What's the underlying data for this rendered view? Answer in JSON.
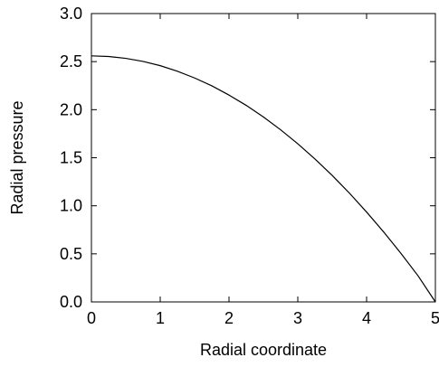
{
  "chart_data": {
    "type": "line",
    "title": "",
    "xlabel": "Radial coordinate",
    "ylabel": "Radial pressure",
    "xlim": [
      0,
      5
    ],
    "ylim": [
      0,
      3.0
    ],
    "xticks": [
      "0",
      "1",
      "2",
      "3",
      "4",
      "5"
    ],
    "yticks": [
      "0.0",
      "0.5",
      "1.0",
      "1.5",
      "2.0",
      "2.5",
      "3.0"
    ],
    "grid": false,
    "legend": "none",
    "line_color": "#000000",
    "series": [
      {
        "x": [
          0.0,
          0.25,
          0.5,
          0.75,
          1.0,
          1.25,
          1.5,
          1.75,
          2.0,
          2.25,
          2.5,
          2.75,
          3.0,
          3.25,
          3.5,
          3.75,
          4.0,
          4.25,
          4.5,
          4.75,
          5.0
        ],
        "values": [
          2.56,
          2.553,
          2.534,
          2.502,
          2.458,
          2.4,
          2.33,
          2.248,
          2.152,
          2.045,
          1.924,
          1.791,
          1.645,
          1.487,
          1.316,
          1.132,
          0.935,
          0.726,
          0.504,
          0.27,
          0.0
        ]
      }
    ]
  }
}
